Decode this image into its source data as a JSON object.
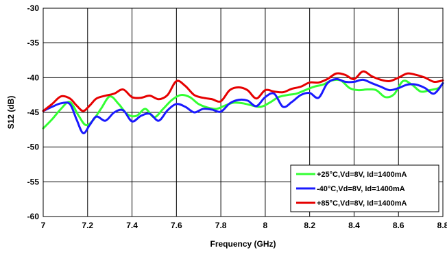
{
  "chart_data": {
    "type": "line",
    "title": "",
    "xlabel": "Frequency (GHz)",
    "ylabel": "S12 (dB)",
    "xlim": [
      7,
      8.8
    ],
    "ylim": [
      -60,
      -30
    ],
    "x_ticks": [
      "7",
      "7.2",
      "7.4",
      "7.6",
      "7.8",
      "8",
      "8.2",
      "8.4",
      "8.6",
      "8.8"
    ],
    "y_ticks": [
      "-30",
      "-35",
      "-40",
      "-45",
      "-50",
      "-55",
      "-60"
    ],
    "grid": true,
    "legend_position": "bottom-right",
    "series": [
      {
        "name": "+25°C,Vd=8V, Id=1400mA",
        "color": "#33ff33",
        "x": [
          7.0,
          7.04,
          7.08,
          7.12,
          7.16,
          7.19,
          7.22,
          7.26,
          7.3,
          7.34,
          7.38,
          7.42,
          7.46,
          7.5,
          7.54,
          7.58,
          7.62,
          7.66,
          7.7,
          7.74,
          7.78,
          7.82,
          7.86,
          7.9,
          7.94,
          7.98,
          8.02,
          8.06,
          8.1,
          8.14,
          8.18,
          8.22,
          8.26,
          8.3,
          8.34,
          8.38,
          8.42,
          8.46,
          8.5,
          8.54,
          8.58,
          8.62,
          8.66,
          8.7,
          8.74,
          8.78,
          8.8
        ],
        "y": [
          -47.3,
          -46.0,
          -44.5,
          -43.5,
          -45.5,
          -46.8,
          -46.3,
          -44.5,
          -42.7,
          -43.8,
          -45.3,
          -45.5,
          -44.5,
          -45.7,
          -44.5,
          -43.2,
          -42.5,
          -42.8,
          -43.8,
          -44.3,
          -44.5,
          -44.0,
          -43.6,
          -43.7,
          -44.0,
          -44.2,
          -43.6,
          -42.8,
          -42.5,
          -42.3,
          -41.8,
          -41.3,
          -41.0,
          -40.4,
          -40.4,
          -41.5,
          -41.8,
          -41.7,
          -41.8,
          -42.8,
          -42.4,
          -40.5,
          -41.0,
          -42.0,
          -41.8,
          -41.5,
          -40.8
        ]
      },
      {
        "name": "-40°C,Vd=8V, Id=1400mA",
        "color": "#1a1aff",
        "x": [
          7.0,
          7.04,
          7.08,
          7.12,
          7.15,
          7.18,
          7.21,
          7.24,
          7.28,
          7.32,
          7.36,
          7.4,
          7.44,
          7.48,
          7.52,
          7.56,
          7.6,
          7.64,
          7.68,
          7.72,
          7.76,
          7.8,
          7.84,
          7.88,
          7.92,
          7.96,
          8.0,
          8.04,
          8.08,
          8.12,
          8.16,
          8.2,
          8.24,
          8.28,
          8.32,
          8.36,
          8.4,
          8.44,
          8.48,
          8.52,
          8.56,
          8.6,
          8.64,
          8.68,
          8.72,
          8.76,
          8.8
        ],
        "y": [
          -44.8,
          -44.2,
          -43.7,
          -43.8,
          -46.0,
          -48.0,
          -46.8,
          -45.6,
          -46.2,
          -45.0,
          -44.7,
          -46.3,
          -45.5,
          -45.2,
          -46.2,
          -44.7,
          -43.8,
          -44.2,
          -45.0,
          -44.5,
          -44.6,
          -44.9,
          -43.7,
          -43.2,
          -43.3,
          -44.1,
          -42.8,
          -42.3,
          -44.2,
          -43.5,
          -42.5,
          -42.2,
          -42.9,
          -40.8,
          -40.2,
          -40.6,
          -40.6,
          -40.3,
          -40.8,
          -41.3,
          -41.8,
          -41.5,
          -41.0,
          -41.0,
          -41.5,
          -42.3,
          -40.8
        ]
      },
      {
        "name": "+85°C,Vd=8V, Id=1400mA",
        "color": "#e60000",
        "x": [
          7.0,
          7.04,
          7.08,
          7.12,
          7.15,
          7.18,
          7.21,
          7.24,
          7.28,
          7.32,
          7.36,
          7.4,
          7.44,
          7.48,
          7.52,
          7.56,
          7.6,
          7.64,
          7.68,
          7.72,
          7.76,
          7.8,
          7.84,
          7.88,
          7.92,
          7.96,
          8.0,
          8.04,
          8.08,
          8.12,
          8.16,
          8.2,
          8.24,
          8.28,
          8.32,
          8.36,
          8.4,
          8.44,
          8.48,
          8.52,
          8.56,
          8.6,
          8.64,
          8.68,
          8.72,
          8.76,
          8.8
        ],
        "y": [
          -44.8,
          -43.8,
          -42.7,
          -43.0,
          -44.0,
          -44.8,
          -44.0,
          -43.0,
          -42.6,
          -42.3,
          -41.7,
          -42.8,
          -42.9,
          -42.6,
          -43.1,
          -42.5,
          -40.5,
          -41.2,
          -42.5,
          -42.9,
          -43.1,
          -43.4,
          -41.8,
          -41.4,
          -41.8,
          -43.0,
          -41.8,
          -42.0,
          -42.1,
          -41.6,
          -41.3,
          -40.7,
          -40.7,
          -40.2,
          -39.4,
          -39.6,
          -40.2,
          -39.1,
          -39.8,
          -40.3,
          -40.5,
          -40.0,
          -39.4,
          -39.6,
          -40.0,
          -40.6,
          -40.4
        ]
      }
    ]
  }
}
